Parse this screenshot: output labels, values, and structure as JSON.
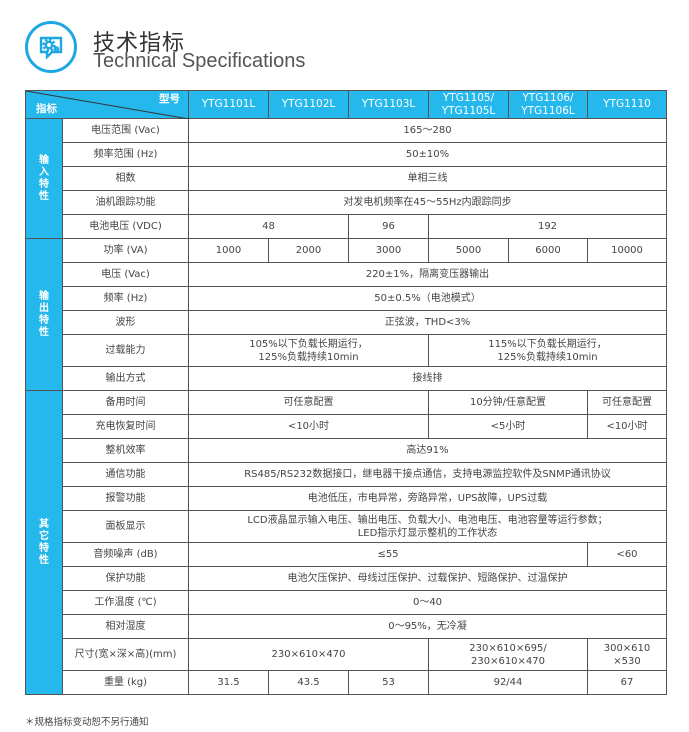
{
  "header": {
    "icon": "gear-monitor-icon",
    "title_cn": "技术指标",
    "title_en": "Technical Specifications"
  },
  "colors": {
    "accent": "#25b8ec"
  },
  "table": {
    "corner_model": "型号",
    "corner_index": "指标",
    "models": [
      "YTG1101L",
      "YTG1102L",
      "YTG1103L",
      "YTG1105/\nYTG1105L",
      "YTG1106/\nYTG1106L",
      "YTG1110"
    ],
    "groups": [
      {
        "label": "输\n入\n特\n性",
        "rows": [
          {
            "label": "电压范围 (Vac)",
            "cells": [
              {
                "text": "165～280",
                "span": 6
              }
            ]
          },
          {
            "label": "频率范围 (Hz)",
            "cells": [
              {
                "text": "50±10%",
                "span": 6
              }
            ]
          },
          {
            "label": "相数",
            "cells": [
              {
                "text": "单相三线",
                "span": 6
              }
            ]
          },
          {
            "label": "油机跟踪功能",
            "cells": [
              {
                "text": "对发电机频率在45～55Hz内跟踪同步",
                "span": 6
              }
            ]
          },
          {
            "label": "电池电压 (VDC)",
            "cells": [
              {
                "text": "48",
                "span": 2
              },
              {
                "text": "96",
                "span": 1
              },
              {
                "text": "192",
                "span": 3
              }
            ]
          }
        ]
      },
      {
        "label": "输\n出\n特\n性",
        "rows": [
          {
            "label": "功率 (VA)",
            "cells": [
              {
                "text": "1000",
                "span": 1
              },
              {
                "text": "2000",
                "span": 1
              },
              {
                "text": "3000",
                "span": 1
              },
              {
                "text": "5000",
                "span": 1
              },
              {
                "text": "6000",
                "span": 1
              },
              {
                "text": "10000",
                "span": 1
              }
            ]
          },
          {
            "label": "电压 (Vac)",
            "cells": [
              {
                "text": "220±1%，隔离变压器输出",
                "span": 6
              }
            ]
          },
          {
            "label": "频率 (Hz)",
            "cells": [
              {
                "text": "50±0.5%（电池模式）",
                "span": 6
              }
            ]
          },
          {
            "label": "波形",
            "cells": [
              {
                "text": "正弦波，THD<3%",
                "span": 6
              }
            ]
          },
          {
            "label": "过载能力",
            "cells": [
              {
                "text": "105%以下负载长期运行，\n125%负载持续10min",
                "span": 3
              },
              {
                "text": "115%以下负载长期运行，\n125%负载持续10min",
                "span": 3
              }
            ]
          },
          {
            "label": "输出方式",
            "cells": [
              {
                "text": "接线排",
                "span": 6
              }
            ]
          }
        ]
      },
      {
        "label": "其\n它\n特\n性",
        "rows": [
          {
            "label": "备用时间",
            "cells": [
              {
                "text": "可任意配置",
                "span": 3
              },
              {
                "text": "10分钟/任意配置",
                "span": 2
              },
              {
                "text": "可任意配置",
                "span": 1
              }
            ]
          },
          {
            "label": "充电恢复时间",
            "cells": [
              {
                "text": "<10小时",
                "span": 3
              },
              {
                "text": "<5小时",
                "span": 2
              },
              {
                "text": "<10小时",
                "span": 1
              }
            ]
          },
          {
            "label": "整机效率",
            "cells": [
              {
                "text": "高达91%",
                "span": 6
              }
            ]
          },
          {
            "label": "通信功能",
            "cells": [
              {
                "text": "RS485/RS232数据接口，继电器干接点通信，支持电源监控软件及SNMP通讯协议",
                "span": 6
              }
            ]
          },
          {
            "label": "报警功能",
            "cells": [
              {
                "text": "电池低压，市电异常，旁路异常，UPS故障，UPS过载",
                "span": 6
              }
            ]
          },
          {
            "label": "面板显示",
            "cells": [
              {
                "text": "LCD液晶显示输入电压、输出电压、负载大小、电池电压、电池容量等运行参数；\nLED指示灯显示整机的工作状态",
                "span": 6
              }
            ]
          },
          {
            "label": "音频噪声 (dB)",
            "cells": [
              {
                "text": "≤55",
                "span": 5
              },
              {
                "text": "<60",
                "span": 1
              }
            ]
          },
          {
            "label": "保护功能",
            "cells": [
              {
                "text": "电池欠压保护、母线过压保护、过载保护、短路保护、过温保护",
                "span": 6
              }
            ]
          },
          {
            "label": "工作温度 (℃)",
            "cells": [
              {
                "text": "0～40",
                "span": 6
              }
            ]
          },
          {
            "label": "相对湿度",
            "cells": [
              {
                "text": "0～95%，无冷凝",
                "span": 6
              }
            ]
          },
          {
            "label": "尺寸(宽×深×高)(mm)",
            "cells": [
              {
                "text": "230×610×470",
                "span": 3
              },
              {
                "text": "230×610×695/\n230×610×470",
                "span": 2
              },
              {
                "text": "300×610\n×530",
                "span": 1
              }
            ]
          },
          {
            "label": "重量 (kg)",
            "cells": [
              {
                "text": "31.5",
                "span": 1
              },
              {
                "text": "43.5",
                "span": 1
              },
              {
                "text": "53",
                "span": 1
              },
              {
                "text": "92/44",
                "span": 2
              },
              {
                "text": "67",
                "span": 1
              }
            ]
          }
        ]
      }
    ]
  },
  "footnote": "＊规格指标变动恕不另行通知"
}
